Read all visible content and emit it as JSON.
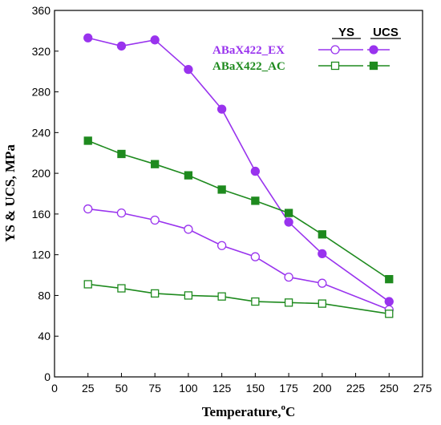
{
  "chart_data": {
    "type": "line",
    "xlabel": "Temperature,",
    "xlabel_sup": "o",
    "xlabel_unit": "C",
    "ylabel": "YS & UCS, MPa",
    "xlim": [
      0,
      275
    ],
    "ylim": [
      0,
      360
    ],
    "xticks": [
      0,
      25,
      50,
      75,
      100,
      125,
      150,
      175,
      200,
      225,
      250,
      275
    ],
    "yticks": [
      0,
      40,
      80,
      120,
      160,
      200,
      240,
      280,
      320,
      360
    ],
    "grid": false,
    "legend_position": "top-right",
    "legend": {
      "headers": [
        "YS",
        "UCS"
      ],
      "rows": [
        {
          "name": "ABaX422_EX",
          "color": "#9933ee"
        },
        {
          "name": "ABaX422_AC",
          "color": "#1e8a1e"
        }
      ]
    },
    "series": [
      {
        "alloy": "ABaX422_EX",
        "property": "UCS",
        "color": "#9933ee",
        "marker": "filled-circle",
        "x": [
          25,
          50,
          75,
          100,
          125,
          150,
          175,
          200,
          250
        ],
        "y": [
          333,
          325,
          331,
          302,
          263,
          202,
          152,
          121,
          74
        ]
      },
      {
        "alloy": "ABaX422_EX",
        "property": "YS",
        "color": "#9933ee",
        "marker": "open-circle",
        "x": [
          25,
          50,
          75,
          100,
          125,
          150,
          175,
          200,
          250
        ],
        "y": [
          165,
          161,
          154,
          145,
          129,
          118,
          98,
          92,
          66
        ]
      },
      {
        "alloy": "ABaX422_AC",
        "property": "UCS",
        "color": "#1e8a1e",
        "marker": "filled-square",
        "x": [
          25,
          50,
          75,
          100,
          125,
          150,
          175,
          200,
          250
        ],
        "y": [
          232,
          219,
          209,
          198,
          184,
          173,
          161,
          140,
          96
        ]
      },
      {
        "alloy": "ABaX422_AC",
        "property": "YS",
        "color": "#1e8a1e",
        "marker": "open-square",
        "x": [
          25,
          50,
          75,
          100,
          125,
          150,
          175,
          200,
          250
        ],
        "y": [
          91,
          87,
          82,
          80,
          79,
          74,
          73,
          72,
          62
        ]
      }
    ]
  }
}
